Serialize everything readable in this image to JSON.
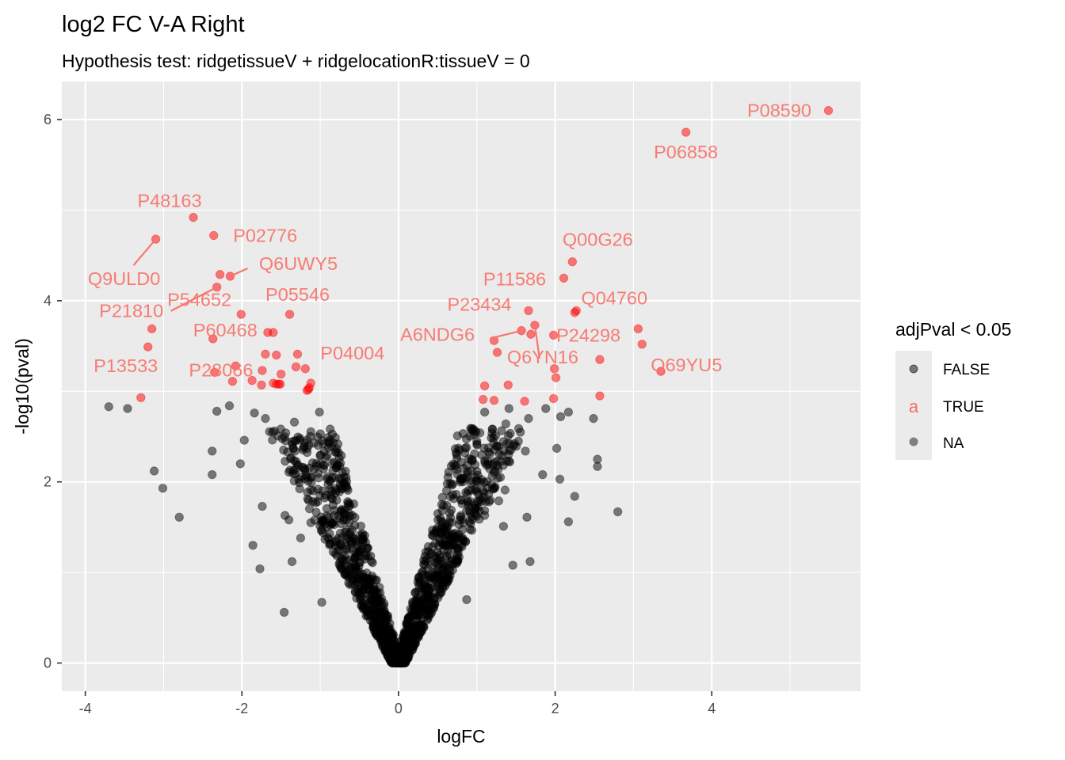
{
  "chart_data": {
    "type": "scatter",
    "title": "log2 FC V-A Right",
    "subtitle": "Hypothesis test: ridgetissueV + ridgelocationR:tissueV = 0",
    "xlabel": "logFC",
    "ylabel": "-log10(pval)",
    "xlim": [
      -4.3,
      5.9
    ],
    "ylim": [
      -0.31,
      6.42
    ],
    "x_ticks": [
      -4,
      -2,
      0,
      2,
      4
    ],
    "x_tick_labels": [
      "-4",
      "-2",
      "0",
      "2",
      "4"
    ],
    "y_ticks": [
      0,
      2,
      4,
      6
    ],
    "y_tick_labels": [
      "0",
      "2",
      "4",
      "6"
    ],
    "grid": true,
    "background": "#ebebeb",
    "legend": {
      "title": "adjPval < 0.05",
      "placement": "right",
      "entries": [
        {
          "label": "FALSE",
          "color": "#000000",
          "alpha": 0.5
        },
        {
          "label": "TRUE",
          "color": "#ff0000",
          "alpha": 0.5,
          "glyph": "a"
        },
        {
          "label": "NA",
          "color": "#808080",
          "alpha": 1.0
        }
      ]
    },
    "colors": {
      "FALSE": "#000000",
      "TRUE": "#ff0000",
      "label": "#f8766d"
    },
    "series": [
      {
        "name": "TRUE",
        "points": [
          [
            5.49,
            6.1
          ],
          [
            3.67,
            5.86
          ],
          [
            -2.62,
            4.92
          ],
          [
            -2.36,
            4.72
          ],
          [
            -3.1,
            4.68
          ],
          [
            -2.28,
            4.29
          ],
          [
            -2.15,
            4.27
          ],
          [
            -2.32,
            4.15
          ],
          [
            -2.01,
            3.85
          ],
          [
            -1.39,
            3.85
          ],
          [
            -3.15,
            3.69
          ],
          [
            -2.37,
            3.58
          ],
          [
            -1.67,
            3.65
          ],
          [
            -1.6,
            3.65
          ],
          [
            -3.2,
            3.49
          ],
          [
            -1.7,
            3.41
          ],
          [
            -1.56,
            3.4
          ],
          [
            -1.29,
            3.41
          ],
          [
            -2.35,
            3.21
          ],
          [
            -2.08,
            3.28
          ],
          [
            -1.74,
            3.23
          ],
          [
            -1.31,
            3.27
          ],
          [
            -1.19,
            3.25
          ],
          [
            -2.12,
            3.11
          ],
          [
            -1.87,
            3.12
          ],
          [
            -1.5,
            3.19
          ],
          [
            -1.75,
            3.07
          ],
          [
            -1.6,
            3.09
          ],
          [
            -1.56,
            3.08
          ],
          [
            -1.53,
            3.08
          ],
          [
            -1.51,
            3.08
          ],
          [
            -1.12,
            3.09
          ],
          [
            -1.15,
            3.02
          ],
          [
            -1.17,
            3.01
          ],
          [
            -1.14,
            3.04
          ],
          [
            -3.29,
            2.93
          ],
          [
            2.22,
            4.43
          ],
          [
            2.11,
            4.25
          ],
          [
            2.27,
            3.89
          ],
          [
            2.25,
            3.87
          ],
          [
            1.66,
            3.89
          ],
          [
            1.74,
            3.73
          ],
          [
            1.57,
            3.67
          ],
          [
            1.69,
            3.63
          ],
          [
            1.98,
            3.62
          ],
          [
            3.06,
            3.69
          ],
          [
            3.11,
            3.52
          ],
          [
            1.22,
            3.56
          ],
          [
            1.26,
            3.43
          ],
          [
            2.57,
            3.35
          ],
          [
            1.4,
            3.07
          ],
          [
            1.1,
            3.06
          ],
          [
            1.99,
            3.25
          ],
          [
            2.01,
            3.15
          ],
          [
            3.35,
            3.22
          ],
          [
            1.08,
            2.91
          ],
          [
            1.22,
            2.9
          ],
          [
            1.61,
            2.89
          ],
          [
            1.98,
            2.92
          ],
          [
            2.57,
            2.95
          ]
        ]
      },
      {
        "name": "FALSE",
        "points": [
          [
            -3.7,
            2.83
          ],
          [
            -3.46,
            2.81
          ],
          [
            -3.12,
            2.12
          ],
          [
            -3.01,
            1.93
          ],
          [
            -2.8,
            1.61
          ],
          [
            -2.32,
            2.78
          ],
          [
            -2.16,
            2.84
          ],
          [
            -2.38,
            2.34
          ],
          [
            -2.38,
            2.08
          ],
          [
            -1.97,
            2.46
          ],
          [
            -2.02,
            2.2
          ],
          [
            -1.84,
            2.76
          ],
          [
            -1.7,
            2.7
          ],
          [
            -1.61,
            2.55
          ],
          [
            -1.33,
            2.66
          ],
          [
            -1.01,
            2.77
          ],
          [
            -1.86,
            1.3
          ],
          [
            -1.77,
            1.04
          ],
          [
            -1.46,
            0.56
          ],
          [
            -1.74,
            1.73
          ],
          [
            -1.45,
            1.63
          ],
          [
            -1.4,
            1.58
          ],
          [
            -1.25,
            1.38
          ],
          [
            -1.12,
            1.55
          ],
          [
            -0.98,
            0.67
          ],
          [
            -1.36,
            1.12
          ],
          [
            -0.9,
            1.97
          ],
          [
            -0.82,
            1.63
          ],
          [
            -0.71,
            1.22
          ],
          [
            -0.62,
            1.05
          ],
          [
            1.0,
            2.45
          ],
          [
            0.92,
            2.59
          ],
          [
            0.97,
            2.31
          ],
          [
            1.1,
            2.77
          ],
          [
            1.24,
            2.51
          ],
          [
            1.37,
            2.64
          ],
          [
            1.41,
            2.81
          ],
          [
            1.66,
            2.7
          ],
          [
            1.88,
            2.81
          ],
          [
            2.07,
            2.72
          ],
          [
            2.17,
            2.77
          ],
          [
            2.49,
            2.7
          ],
          [
            2.54,
            2.17
          ],
          [
            2.54,
            2.25
          ],
          [
            1.62,
            2.34
          ],
          [
            1.84,
            2.08
          ],
          [
            2.02,
            2.37
          ],
          [
            2.06,
            2.03
          ],
          [
            1.64,
            1.61
          ],
          [
            2.25,
            1.84
          ],
          [
            2.17,
            1.56
          ],
          [
            2.8,
            1.67
          ],
          [
            1.46,
            1.08
          ],
          [
            1.68,
            1.12
          ],
          [
            1.2,
            1.92
          ],
          [
            1.28,
            1.79
          ],
          [
            1.36,
            1.91
          ],
          [
            1.1,
            1.63
          ],
          [
            1.34,
            1.51
          ],
          [
            0.87,
            0.7
          ]
        ],
        "dense_cloud": "approx. 1500 additional non-significant points forming a V shape from (0,0) up to |logFC|≈1.2, -log10(pval)≈2.5"
      }
    ],
    "labels": [
      {
        "text": "P08590",
        "x": 5.49,
        "y": 6.1
      },
      {
        "text": "P06858",
        "x": 3.67,
        "y": 5.86
      },
      {
        "text": "P48163",
        "x": -2.62,
        "y": 4.92
      },
      {
        "text": "P02776",
        "x": -2.36,
        "y": 4.72
      },
      {
        "text": "Q9ULD0",
        "x": -3.1,
        "y": 4.68
      },
      {
        "text": "P54652",
        "x": -2.28,
        "y": 4.29
      },
      {
        "text": "Q6UWY5",
        "x": -2.15,
        "y": 4.27
      },
      {
        "text": "P21810",
        "x": -2.32,
        "y": 4.15
      },
      {
        "text": "P60468",
        "x": -2.01,
        "y": 3.85
      },
      {
        "text": "P05546",
        "x": -1.39,
        "y": 3.85
      },
      {
        "text": "P04004",
        "x": -1.6,
        "y": 3.65
      },
      {
        "text": "P13533",
        "x": -3.2,
        "y": 3.49
      },
      {
        "text": "P28066",
        "x": -1.7,
        "y": 3.41
      },
      {
        "text": "Q00G26",
        "x": 2.22,
        "y": 4.43
      },
      {
        "text": "P11586",
        "x": 2.11,
        "y": 4.25
      },
      {
        "text": "Q04760",
        "x": 2.27,
        "y": 3.89
      },
      {
        "text": "P23434",
        "x": 1.66,
        "y": 3.89
      },
      {
        "text": "A6NDG6",
        "x": 1.57,
        "y": 3.67
      },
      {
        "text": "P24298",
        "x": 1.98,
        "y": 3.62
      },
      {
        "text": "Q6YN16",
        "x": 1.74,
        "y": 3.73
      },
      {
        "text": "Q69YU5",
        "x": 3.11,
        "y": 3.52
      }
    ]
  }
}
